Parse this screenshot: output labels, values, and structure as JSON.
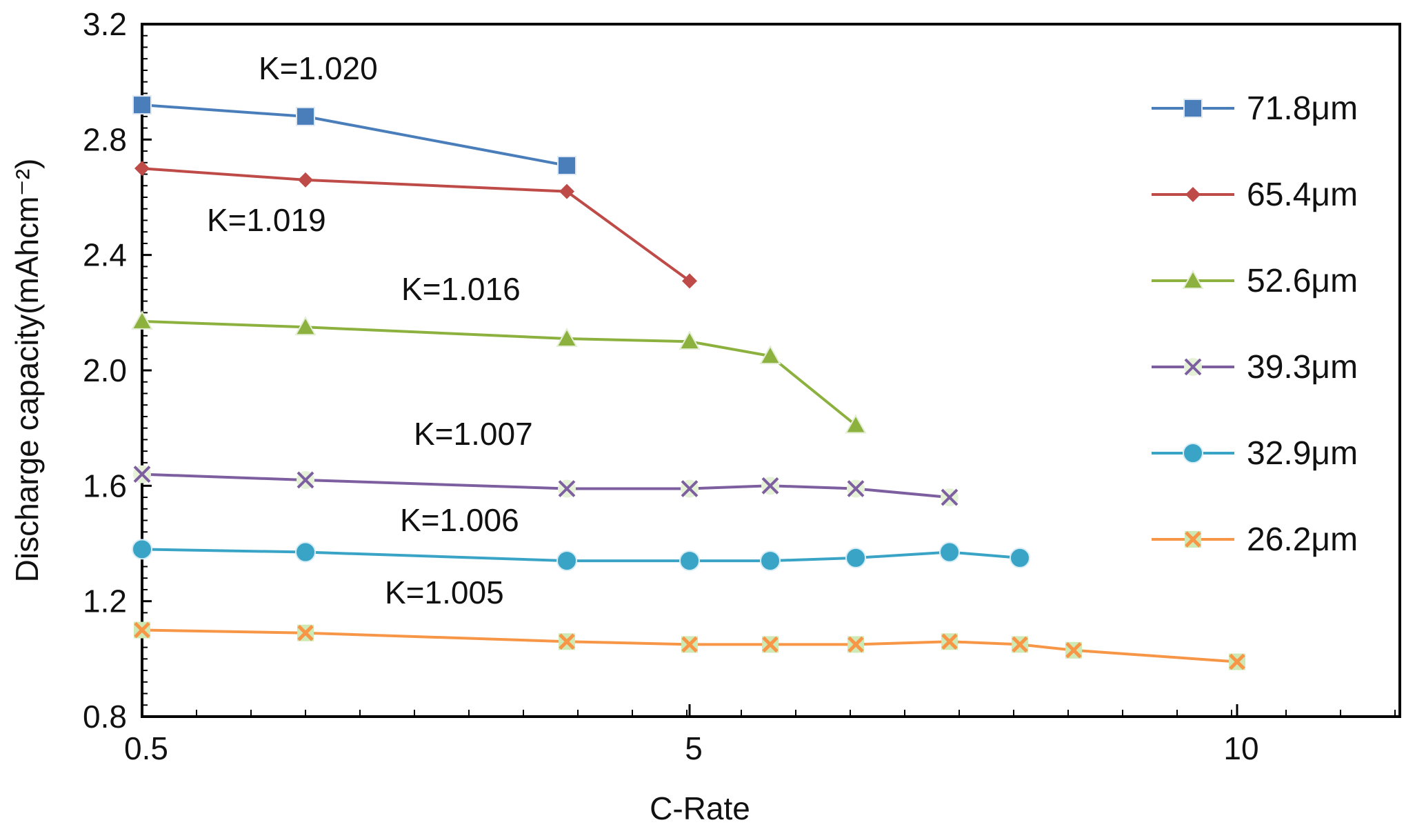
{
  "chart_data": {
    "type": "line",
    "xlabel": "C-Rate",
    "ylabel": "Discharge capacity(mAhcm⁻²)",
    "x_axis": {
      "scale": "piecewise",
      "labeled_ticks": [
        {
          "value": 0.5,
          "label": "0.5"
        },
        {
          "value": 5,
          "label": "5"
        },
        {
          "value": 10,
          "label": "10"
        }
      ]
    },
    "ylim": [
      0.8,
      3.2
    ],
    "y_ticks": [
      {
        "value": 0.8,
        "label": "0.8"
      },
      {
        "value": 1.2,
        "label": "1.2"
      },
      {
        "value": 1.6,
        "label": "1.6"
      },
      {
        "value": 2.0,
        "label": "2.0"
      },
      {
        "value": 2.4,
        "label": "2.4"
      },
      {
        "value": 2.8,
        "label": "2.8"
      },
      {
        "value": 3.2,
        "label": "3.2"
      }
    ],
    "legend_position": "right",
    "grid": false,
    "series": [
      {
        "name": "71.8μm",
        "color": "#4a7ebb",
        "marker": "square",
        "x": [
          0.5,
          1,
          3
        ],
        "y": [
          2.92,
          2.88,
          2.71
        ]
      },
      {
        "name": "65.4μm",
        "color": "#be4b48",
        "marker": "diamond",
        "x": [
          0.5,
          1,
          3,
          5
        ],
        "y": [
          2.7,
          2.66,
          2.62,
          2.31
        ]
      },
      {
        "name": "52.6μm",
        "color": "#8cb13e",
        "marker": "triangle",
        "x": [
          0.5,
          1,
          3,
          5,
          6,
          7
        ],
        "y": [
          2.17,
          2.15,
          2.11,
          2.1,
          2.05,
          1.81
        ]
      },
      {
        "name": "39.3μm",
        "color": "#7d5fa0",
        "marker": "x",
        "x": [
          0.5,
          1,
          3,
          5,
          6,
          7,
          8
        ],
        "y": [
          1.64,
          1.62,
          1.59,
          1.59,
          1.6,
          1.59,
          1.56
        ]
      },
      {
        "name": "32.9μm",
        "color": "#3aa4c6",
        "marker": "circle",
        "x": [
          0.5,
          1,
          3,
          5,
          6,
          7,
          8,
          9
        ],
        "y": [
          1.38,
          1.37,
          1.34,
          1.34,
          1.34,
          1.35,
          1.37,
          1.35
        ]
      },
      {
        "name": "26.2μm",
        "color": "#f79646",
        "marker": "star",
        "x": [
          0.5,
          1,
          3,
          5,
          6,
          7,
          8,
          9,
          9.5,
          10
        ],
        "y": [
          1.1,
          1.09,
          1.06,
          1.05,
          1.05,
          1.05,
          1.06,
          1.05,
          1.03,
          0.99
        ]
      }
    ],
    "annotations": [
      {
        "text": "K=1.020"
      },
      {
        "text": "K=1.019"
      },
      {
        "text": "K=1.016"
      },
      {
        "text": "K=1.007"
      },
      {
        "text": "K=1.006"
      },
      {
        "text": "K=1.005"
      }
    ]
  }
}
